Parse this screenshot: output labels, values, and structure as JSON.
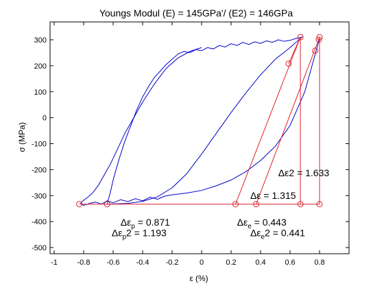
{
  "chart_data": {
    "type": "line",
    "title": "Youngs Modul (E) = 145GPa'/ (E2) = 146GPa",
    "xlabel": "ε (%)",
    "ylabel": "σ (MPa)",
    "xlim": [
      -1,
      1
    ],
    "ylim": [
      -500,
      300
    ],
    "xticks": [
      -1,
      -0.8,
      -0.6,
      -0.4,
      -0.2,
      0,
      0.2,
      0.4,
      0.6,
      0.8
    ],
    "yticks": [
      -500,
      -400,
      -300,
      -200,
      -100,
      0,
      100,
      200,
      300
    ],
    "grid": false,
    "colors": {
      "series": "#0000c8",
      "construction": "#e0202a",
      "axes": "#000000"
    },
    "series": [
      {
        "x": [
          0.0,
          -0.08,
          -0.16,
          -0.24,
          -0.32,
          -0.4,
          -0.46,
          -0.52,
          -0.57,
          -0.62,
          -0.66,
          -0.7,
          -0.74,
          -0.78,
          -0.81,
          -0.82,
          -0.8,
          -0.76,
          -0.72,
          -0.68,
          -0.64,
          -0.6,
          -0.55,
          -0.5,
          -0.45,
          -0.4,
          -0.35,
          -0.3,
          -0.25,
          -0.2,
          -0.1,
          0.0,
          0.1,
          0.2,
          0.3,
          0.4,
          0.5,
          0.6,
          0.7,
          0.8
        ],
        "y": [
          270,
          255,
          230,
          190,
          130,
          60,
          0,
          -60,
          -120,
          -180,
          -220,
          -260,
          -290,
          -310,
          -322,
          -330,
          -338,
          -330,
          -325,
          -333,
          -320,
          -328,
          -316,
          -323,
          -312,
          -320,
          -306,
          -314,
          -302,
          -297,
          -290,
          -280,
          -262,
          -240,
          -208,
          -165,
          -110,
          -30,
          100,
          305
        ]
      },
      {
        "x": [
          -0.64,
          -0.62,
          -0.6,
          -0.56,
          -0.52,
          -0.48,
          -0.44,
          -0.4,
          -0.36,
          -0.32,
          -0.28,
          -0.24,
          -0.2,
          -0.16,
          -0.12,
          -0.08,
          -0.04,
          0.0,
          0.04,
          0.08,
          0.12,
          0.16,
          0.2,
          0.24,
          0.28,
          0.32,
          0.36,
          0.4,
          0.44,
          0.48,
          0.52,
          0.56,
          0.6,
          0.64,
          0.68,
          0.6,
          0.5,
          0.4,
          0.3,
          0.2,
          0.1,
          0.0,
          -0.1,
          -0.2,
          -0.3,
          -0.4,
          -0.5,
          -0.64
        ],
        "y": [
          -330,
          -290,
          -240,
          -160,
          -90,
          -30,
          30,
          80,
          120,
          155,
          180,
          205,
          225,
          245,
          255,
          250,
          262,
          258,
          270,
          265,
          278,
          272,
          285,
          278,
          290,
          282,
          292,
          286,
          296,
          290,
          300,
          294,
          298,
          305,
          310,
          270,
          225,
          165,
          95,
          20,
          -60,
          -140,
          -215,
          -270,
          -305,
          -322,
          -330,
          -333
        ]
      }
    ],
    "markers": [
      {
        "x": -0.83,
        "y": -333
      },
      {
        "x": -0.64,
        "y": -333
      },
      {
        "x": 0.23,
        "y": -333
      },
      {
        "x": 0.37,
        "y": -333
      },
      {
        "x": 0.67,
        "y": -333
      },
      {
        "x": 0.8,
        "y": -333
      },
      {
        "x": 0.59,
        "y": 208
      },
      {
        "x": 0.67,
        "y": 310
      },
      {
        "x": 0.8,
        "y": 310
      },
      {
        "x": 0.77,
        "y": 258
      },
      {
        "x": 0.795,
        "y": 300
      }
    ],
    "construction_lines": [
      [
        [
          -0.83,
          -333
        ],
        [
          0.8,
          -333
        ]
      ],
      [
        [
          0.67,
          -333
        ],
        [
          0.67,
          310
        ]
      ],
      [
        [
          0.8,
          -333
        ],
        [
          0.8,
          310
        ]
      ],
      [
        [
          0.23,
          -333
        ],
        [
          0.67,
          310
        ]
      ],
      [
        [
          0.37,
          -333
        ],
        [
          0.8,
          310
        ]
      ],
      [
        [
          0.59,
          208
        ],
        [
          0.67,
          310
        ]
      ]
    ],
    "annotations": [
      {
        "id": "dep",
        "sym": "Δε",
        "sub": "p",
        "suffix": " = 0.871",
        "x": -0.55,
        "y": -415
      },
      {
        "id": "dep2",
        "sym": "Δε",
        "sub": "p",
        "suffix": "2 = 1.193",
        "x": -0.61,
        "y": -456
      },
      {
        "id": "dee",
        "sym": "Δε",
        "sub": "e",
        "suffix": " = 0.443",
        "x": 0.24,
        "y": -415
      },
      {
        "id": "dee2",
        "sym": "Δε",
        "sub": "e",
        "suffix": "2 = 0.441",
        "x": 0.33,
        "y": -456
      },
      {
        "id": "de",
        "sym": "Δε",
        "sub": "",
        "suffix": " = 1.315",
        "x": 0.33,
        "y": -312
      },
      {
        "id": "de2",
        "sym": "Δε",
        "sub": "",
        "suffix": "2 = 1.633",
        "x": 0.52,
        "y": -225
      }
    ]
  }
}
